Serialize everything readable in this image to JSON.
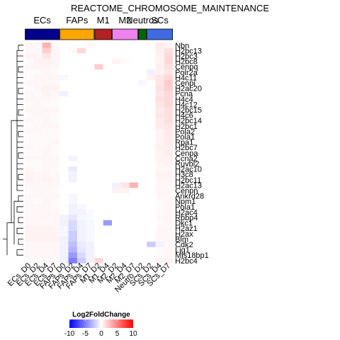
{
  "chart_data": {
    "type": "heatmap",
    "title": "REACTOME_CHROMOSOME_MAINTENANCE",
    "groups": [
      {
        "name": "ECs",
        "color": "#00008B",
        "span": [
          0,
          4
        ]
      },
      {
        "name": "FAPs",
        "color": "#FFA500",
        "span": [
          4,
          8
        ]
      },
      {
        "name": "M1",
        "color": "#B22222",
        "span": [
          8,
          10
        ]
      },
      {
        "name": "M2",
        "color": "#EE82EE",
        "span": [
          10,
          13
        ]
      },
      {
        "name": "Neutros",
        "color": "#006400",
        "span": [
          13,
          14
        ]
      },
      {
        "name": "SCs",
        "color": "#4169E1",
        "span": [
          14,
          17
        ]
      }
    ],
    "columns": [
      "ECs_D0",
      "ECs_D2",
      "ECs_D4",
      "ECs_D7",
      "FAPs_D0",
      "FAPs_D2",
      "FAPs_D4",
      "FAPs_D7",
      "M1_D2",
      "M1_D4",
      "M2_D2",
      "M2_D4",
      "M2_D7",
      "Neutro_D2",
      "SCs_D2",
      "SCs_D4",
      "SCs_D7"
    ],
    "rows": [
      "Nbn",
      "H2bc13",
      "H2bc3",
      "H2bc8",
      "Cenpq",
      "Polr2a",
      "H4c11",
      "Cenpi",
      "H2ac20",
      "Pcna",
      "H4c4",
      "H4c12",
      "H2bc15",
      "H4c6",
      "H2bc14",
      "H2bc1",
      "Pola2",
      "Pola1",
      "Rpa1",
      "H2bc7",
      "Cenpa",
      "Ccna2",
      "Ruvbl2",
      "H2ac10",
      "H3c8",
      "H2bc11",
      "H2ac13",
      "Cenpn",
      "Ankrd28",
      "Npm1",
      "Pola1",
      "H2ac4",
      "Rbbp4",
      "Dkc1",
      "H2az1",
      "H2ax",
      "Blm",
      "Cdk2",
      "Lig1",
      "Mis18bp1",
      "H2bc4"
    ],
    "values": [
      [
        0.4,
        0.3,
        3.0,
        0.2,
        0,
        0,
        0,
        0.3,
        0,
        0,
        0,
        0,
        0,
        0,
        0,
        0.8,
        0.4
      ],
      [
        0.3,
        0.3,
        2.0,
        0.4,
        0,
        0.2,
        1.5,
        0,
        0,
        0,
        0,
        0,
        0,
        0,
        0,
        0.6,
        1.2
      ],
      [
        0.5,
        0.4,
        1.0,
        0.3,
        0,
        0,
        0,
        0,
        0,
        0,
        0,
        0,
        0,
        0,
        0,
        0.5,
        1.5
      ],
      [
        0.2,
        0.5,
        0.5,
        0.4,
        0,
        0,
        0,
        0,
        0,
        0,
        0.5,
        0.2,
        0,
        0,
        0,
        0.5,
        1.5
      ],
      [
        0.3,
        0.4,
        0.4,
        0.3,
        0,
        0,
        0,
        0,
        2.0,
        0,
        0,
        0,
        0,
        0,
        0,
        0.6,
        1.2
      ],
      [
        0.2,
        0.2,
        0.3,
        0.2,
        0,
        0,
        0,
        0,
        0,
        0,
        0,
        0,
        0,
        0,
        -0.5,
        0.5,
        1.0
      ],
      [
        0.2,
        0.3,
        0.3,
        0.3,
        -0.3,
        0,
        0,
        0,
        0,
        0,
        0,
        0,
        0,
        0,
        0.5,
        1.0,
        1.5
      ],
      [
        0.3,
        0.3,
        0.3,
        0.3,
        0,
        0,
        0,
        0,
        0,
        0,
        0,
        0,
        0,
        -0.3,
        0,
        1.0,
        2.0
      ],
      [
        0.2,
        0.3,
        0.5,
        0.5,
        0,
        0,
        0,
        0,
        0,
        0,
        0,
        0,
        0,
        0,
        0,
        1.2,
        1.8
      ],
      [
        0.3,
        0.2,
        0.5,
        0.3,
        -0.5,
        0,
        0,
        0,
        0,
        0,
        0,
        0,
        0,
        0,
        0,
        1.0,
        1.5
      ],
      [
        0.3,
        0.3,
        0.3,
        0.2,
        0,
        0,
        0,
        0,
        0,
        0,
        0,
        0,
        0,
        0,
        0,
        1.2,
        1.5
      ],
      [
        0.2,
        0.3,
        0.2,
        0.2,
        0,
        0,
        0,
        0,
        0,
        0,
        0,
        0,
        0,
        0,
        0,
        1.0,
        1.5
      ],
      [
        0.4,
        0.3,
        0.4,
        0.3,
        0,
        0,
        0,
        0,
        0,
        0,
        0,
        0,
        0,
        0,
        0,
        0.8,
        1.2
      ],
      [
        0.2,
        0.3,
        0.3,
        0.2,
        0,
        0,
        0,
        0,
        0,
        0,
        0,
        0,
        0,
        0,
        0,
        1.0,
        1.2
      ],
      [
        0.3,
        0.2,
        0.3,
        0.2,
        0,
        0,
        0,
        0,
        0,
        0,
        0,
        0,
        0,
        0,
        0,
        0.8,
        1.3
      ],
      [
        0.2,
        0.3,
        0.3,
        0.3,
        0,
        0,
        0,
        0,
        0,
        0,
        0,
        0,
        0,
        0,
        0,
        0.8,
        1.0
      ],
      [
        0.3,
        0.3,
        0.2,
        0.2,
        0,
        0,
        0,
        0,
        0,
        0,
        0,
        0,
        0,
        0,
        0,
        0.5,
        0.8
      ],
      [
        0.2,
        0.2,
        0.2,
        0.2,
        0,
        0,
        0,
        0,
        0,
        0,
        0,
        0,
        0,
        0,
        0,
        0.5,
        0.8
      ],
      [
        0.2,
        0.2,
        0.2,
        0.3,
        0,
        0,
        0,
        0,
        0,
        0,
        0,
        0,
        0,
        0,
        0,
        0.5,
        0.8
      ],
      [
        0.3,
        0.2,
        0.3,
        0.2,
        0,
        0,
        0,
        0,
        0,
        0,
        0,
        0,
        0,
        0,
        0,
        0.6,
        0.6
      ],
      [
        0.2,
        0.2,
        0.3,
        0.2,
        0,
        0,
        0,
        0,
        0,
        0,
        0,
        0,
        0,
        0,
        0,
        0.5,
        0.7
      ],
      [
        0.3,
        0.3,
        0.3,
        0.3,
        0,
        -0.5,
        0,
        0,
        0,
        0,
        0,
        0,
        0,
        0,
        0,
        0.5,
        0.5
      ],
      [
        0.2,
        0.2,
        0.3,
        0.3,
        0,
        0,
        0,
        0,
        0,
        0,
        0,
        0,
        0,
        0,
        0,
        0.4,
        0.5
      ],
      [
        0.3,
        0.2,
        0.3,
        0.2,
        0,
        -0.8,
        0,
        0,
        0,
        0,
        0,
        0,
        0,
        0,
        0,
        0.3,
        0.3
      ],
      [
        0.4,
        0.3,
        0.4,
        0.3,
        0,
        -0.5,
        0,
        0,
        0,
        0,
        0,
        0,
        0,
        0,
        0,
        0.5,
        0.5
      ],
      [
        0.5,
        0.3,
        0.5,
        0.4,
        0,
        -0.5,
        0,
        0,
        0,
        0,
        0,
        0,
        0,
        0,
        0,
        0.4,
        0.4
      ],
      [
        0.3,
        0.3,
        0.3,
        0.3,
        0,
        0,
        0,
        0,
        0,
        0,
        -0.5,
        1.0,
        3.0,
        0,
        0,
        0.3,
        0.3
      ],
      [
        0.2,
        0.3,
        0.3,
        0.2,
        0,
        0,
        0,
        0,
        0,
        0,
        0.5,
        0.5,
        0,
        0,
        0,
        0.3,
        0.3
      ],
      [
        0.3,
        0.3,
        0.3,
        0.3,
        0,
        -0.3,
        0,
        0,
        0,
        0,
        0,
        0,
        0,
        0,
        0,
        0.3,
        0.3
      ],
      [
        0.3,
        0.2,
        0.3,
        0.2,
        0,
        -0.3,
        0,
        0,
        0,
        0,
        0,
        0,
        0,
        0,
        0,
        0.2,
        0.3
      ],
      [
        0.3,
        0.3,
        0.3,
        0.2,
        0,
        -0.5,
        -0.3,
        0,
        0,
        0,
        0,
        0,
        0,
        0,
        0,
        0.2,
        0.3
      ],
      [
        0.3,
        0.3,
        0.3,
        0.3,
        0,
        -0.5,
        -0.5,
        -0.2,
        0,
        0,
        0,
        0,
        0,
        0,
        0,
        0.2,
        0.3
      ],
      [
        0.3,
        0.3,
        0.4,
        0.3,
        -0.5,
        -1.0,
        -0.3,
        -0.2,
        0,
        0,
        0,
        0,
        0,
        0,
        0,
        0.3,
        0.3
      ],
      [
        0.3,
        0.3,
        0.3,
        0.3,
        -0.5,
        -1.5,
        -0.5,
        -0.3,
        0,
        -4.0,
        0,
        0,
        0,
        0,
        0,
        0.2,
        0.3
      ],
      [
        0.5,
        0.5,
        0.5,
        0.4,
        -0.3,
        -1.5,
        -0.5,
        -0.3,
        0,
        0,
        0,
        0,
        0,
        0,
        0,
        0.3,
        0.3
      ],
      [
        0.5,
        0.5,
        0.5,
        0.4,
        -0.3,
        -2.0,
        -0.5,
        -0.3,
        0,
        0,
        0,
        0,
        0,
        0,
        0,
        0.3,
        0.3
      ],
      [
        0.5,
        0.5,
        0.5,
        0.5,
        -0.5,
        -2.0,
        -0.5,
        -0.3,
        0,
        0,
        0,
        0,
        0,
        0,
        0,
        0.3,
        0.3
      ],
      [
        0.3,
        0.3,
        0.3,
        0.3,
        -0.5,
        -2.5,
        -0.8,
        -0.5,
        0,
        0,
        0,
        0,
        0,
        0,
        -2.0,
        -0.5,
        0.2
      ],
      [
        0.3,
        0.3,
        0.3,
        0.3,
        -0.5,
        -3.0,
        -1.0,
        -0.5,
        0,
        0,
        0,
        0,
        0,
        0,
        0,
        0.2,
        0.3
      ],
      [
        0.3,
        0.3,
        0.3,
        0.3,
        -0.5,
        -4.0,
        -1.5,
        -0.5,
        0,
        0,
        0,
        0,
        0,
        0,
        0,
        0.2,
        0.3
      ],
      [
        0.2,
        0.2,
        0.2,
        0.2,
        -0.5,
        -5.0,
        -2.0,
        -0.5,
        1.5,
        0,
        0,
        0,
        0,
        0,
        0,
        0.5,
        0.5
      ]
    ],
    "color_scale": {
      "title": "Log2FoldChange",
      "min": -10,
      "max": 10,
      "low": "#0000FF",
      "mid": "#FFFFFF",
      "high": "#FF0000",
      "ticks": [
        -10,
        -5,
        0,
        5,
        10
      ]
    }
  }
}
